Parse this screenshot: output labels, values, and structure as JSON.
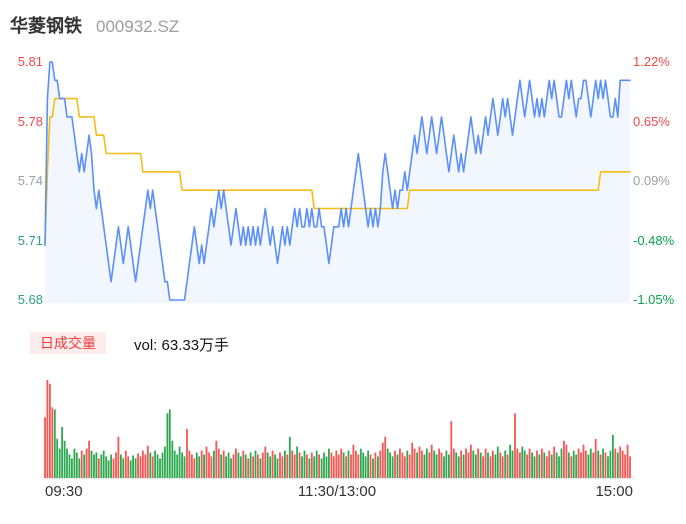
{
  "header": {
    "title": "华菱钢铁",
    "code": "000932.SZ"
  },
  "price_axis": {
    "labels": [
      "5.81",
      "5.78",
      "5.74",
      "5.71",
      "5.68"
    ],
    "colors": [
      "#f04b4b",
      "#f04b4b",
      "#a0a0a0",
      "#2fa084",
      "#2fa084"
    ]
  },
  "pct_axis": {
    "labels": [
      "1.22%",
      "0.65%",
      "0.09%",
      "-0.48%",
      "-1.05%"
    ],
    "colors": [
      "#f04b4b",
      "#f04b4b",
      "#a0a0a0",
      "#0ca34e",
      "#0ca34e"
    ]
  },
  "volume_header": {
    "badge": "日成交量",
    "vol_text": "vol: 63.33万手"
  },
  "time_axis": {
    "open": "09:30",
    "mid": "11:30/13:00",
    "close": "15:00"
  },
  "colors": {
    "price_line": "#5b8ff9",
    "price_fill": "#f2f6fe",
    "avg_line": "#f6bd16",
    "vol_up": "#f75653",
    "vol_down": "#2ca94f",
    "badge_bg": "#fceceb",
    "badge_text": "#f23c3c"
  },
  "chart_data": {
    "type": "line",
    "title": "华菱钢铁 000932.SZ 分时走势",
    "prev_close": 5.74,
    "price_range": [
      5.68,
      5.81
    ],
    "pct_range": [
      -1.05,
      1.22
    ],
    "x_range": [
      "09:30",
      "15:00"
    ],
    "minutes": 240,
    "grid": false,
    "volume_total_label": "63.33万手",
    "series": [
      {
        "name": "price",
        "values": [
          5.71,
          5.79,
          5.81,
          5.81,
          5.8,
          5.8,
          5.79,
          5.79,
          5.79,
          5.78,
          5.78,
          5.78,
          5.77,
          5.76,
          5.75,
          5.76,
          5.75,
          5.76,
          5.77,
          5.76,
          5.74,
          5.73,
          5.74,
          5.73,
          5.72,
          5.71,
          5.7,
          5.69,
          5.7,
          5.71,
          5.72,
          5.71,
          5.7,
          5.71,
          5.72,
          5.71,
          5.7,
          5.69,
          5.7,
          5.71,
          5.72,
          5.73,
          5.74,
          5.73,
          5.74,
          5.73,
          5.72,
          5.71,
          5.7,
          5.69,
          5.69,
          5.68,
          5.68,
          5.68,
          5.68,
          5.68,
          5.68,
          5.68,
          5.69,
          5.7,
          5.71,
          5.72,
          5.71,
          5.7,
          5.71,
          5.7,
          5.71,
          5.72,
          5.73,
          5.72,
          5.73,
          5.74,
          5.73,
          5.74,
          5.73,
          5.72,
          5.71,
          5.72,
          5.73,
          5.72,
          5.71,
          5.72,
          5.71,
          5.72,
          5.71,
          5.72,
          5.71,
          5.72,
          5.71,
          5.72,
          5.73,
          5.72,
          5.71,
          5.72,
          5.71,
          5.7,
          5.71,
          5.72,
          5.71,
          5.72,
          5.71,
          5.72,
          5.73,
          5.72,
          5.73,
          5.72,
          5.72,
          5.73,
          5.72,
          5.73,
          5.72,
          5.72,
          5.73,
          5.72,
          5.72,
          5.71,
          5.7,
          5.71,
          5.72,
          5.72,
          5.72,
          5.73,
          5.72,
          5.73,
          5.72,
          5.73,
          5.74,
          5.75,
          5.76,
          5.75,
          5.74,
          5.73,
          5.72,
          5.73,
          5.72,
          5.73,
          5.72,
          5.73,
          5.75,
          5.76,
          5.75,
          5.74,
          5.73,
          5.74,
          5.73,
          5.74,
          5.74,
          5.75,
          5.74,
          5.75,
          5.76,
          5.77,
          5.76,
          5.77,
          5.78,
          5.77,
          5.76,
          5.77,
          5.78,
          5.77,
          5.76,
          5.77,
          5.78,
          5.77,
          5.76,
          5.75,
          5.76,
          5.77,
          5.76,
          5.75,
          5.76,
          5.75,
          5.76,
          5.77,
          5.78,
          5.77,
          5.76,
          5.77,
          5.76,
          5.77,
          5.78,
          5.77,
          5.78,
          5.79,
          5.78,
          5.77,
          5.78,
          5.79,
          5.78,
          5.79,
          5.78,
          5.77,
          5.78,
          5.79,
          5.8,
          5.79,
          5.78,
          5.79,
          5.8,
          5.79,
          5.78,
          5.79,
          5.78,
          5.79,
          5.78,
          5.79,
          5.8,
          5.79,
          5.8,
          5.79,
          5.78,
          5.78,
          5.79,
          5.8,
          5.79,
          5.8,
          5.79,
          5.78,
          5.79,
          5.79,
          5.8,
          5.8,
          5.79,
          5.78,
          5.79,
          5.8,
          5.79,
          5.8,
          5.79,
          5.8,
          5.79,
          5.78,
          5.78,
          5.79,
          5.78,
          5.8,
          5.8,
          5.8,
          5.8,
          5.8
        ]
      },
      {
        "name": "avg_price",
        "segments": [
          [
            0,
            0,
            5.71
          ],
          [
            1,
            1,
            5.75
          ],
          [
            2,
            3,
            5.78
          ],
          [
            4,
            13,
            5.79
          ],
          [
            14,
            20,
            5.78
          ],
          [
            21,
            24,
            5.77
          ],
          [
            25,
            39,
            5.76
          ],
          [
            40,
            55,
            5.75
          ],
          [
            56,
            109,
            5.74
          ],
          [
            110,
            148,
            5.73
          ],
          [
            149,
            226,
            5.74
          ],
          [
            227,
            239,
            5.75
          ]
        ]
      },
      {
        "name": "volume",
        "unit": "万手",
        "values": [
          62,
          100,
          96,
          72,
          70,
          40,
          30,
          52,
          38,
          30,
          24,
          20,
          30,
          26,
          20,
          28,
          24,
          30,
          38,
          28,
          24,
          26,
          20,
          24,
          28,
          22,
          18,
          24,
          20,
          26,
          42,
          24,
          20,
          28,
          22,
          18,
          23,
          20,
          25,
          22,
          28,
          24,
          33,
          26,
          22,
          28,
          24,
          20,
          26,
          32,
          66,
          70,
          38,
          28,
          24,
          32,
          26,
          22,
          50,
          28,
          24,
          20,
          26,
          22,
          28,
          24,
          32,
          26,
          22,
          28,
          38,
          30,
          24,
          28,
          22,
          26,
          20,
          24,
          30,
          26,
          22,
          28,
          24,
          20,
          26,
          22,
          28,
          24,
          20,
          26,
          32,
          26,
          22,
          28,
          24,
          20,
          26,
          22,
          28,
          24,
          42,
          28,
          24,
          32,
          26,
          22,
          28,
          24,
          20,
          26,
          22,
          28,
          24,
          20,
          26,
          22,
          30,
          26,
          22,
          28,
          24,
          30,
          26,
          22,
          28,
          24,
          34,
          28,
          24,
          30,
          26,
          22,
          28,
          24,
          20,
          26,
          22,
          28,
          36,
          42,
          30,
          26,
          22,
          28,
          24,
          30,
          26,
          22,
          28,
          24,
          36,
          30,
          26,
          32,
          28,
          24,
          30,
          26,
          34,
          28,
          24,
          30,
          26,
          22,
          28,
          24,
          58,
          30,
          26,
          22,
          28,
          24,
          30,
          26,
          34,
          28,
          24,
          30,
          26,
          22,
          30,
          26,
          22,
          28,
          24,
          32,
          26,
          22,
          28,
          24,
          34,
          28,
          66,
          30,
          26,
          32,
          28,
          24,
          30,
          26,
          22,
          28,
          24,
          30,
          26,
          22,
          28,
          24,
          32,
          26,
          22,
          30,
          38,
          34,
          26,
          22,
          28,
          24,
          30,
          26,
          34,
          28,
          24,
          30,
          26,
          40,
          28,
          24,
          30,
          26,
          22,
          28,
          44,
          30,
          26,
          32,
          28,
          24,
          34,
          22
        ]
      }
    ]
  }
}
